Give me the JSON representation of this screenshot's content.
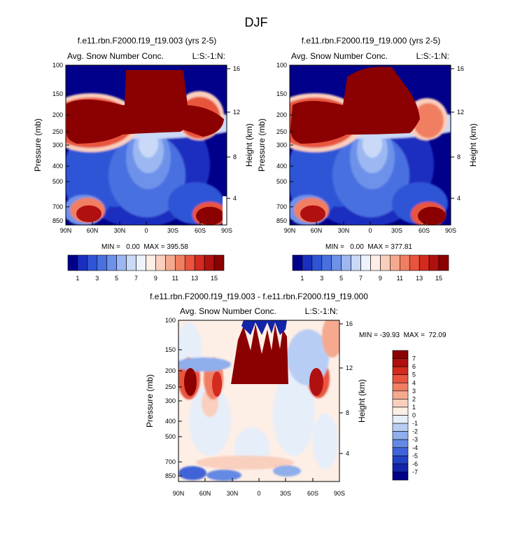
{
  "page_title": "DJF",
  "chart_data": [
    {
      "type": "heatmap",
      "title": "f.e11.rbn.F2000.f19_f19.003 (yrs 2-5)",
      "left_label": "Avg. Snow Number Conc.",
      "right_label": "L:S:-1:N:",
      "ylabel": "Pressure (mb)",
      "y2label": "Height (km)",
      "xticks": [
        "90N",
        "60N",
        "30N",
        "0",
        "30S",
        "60S",
        "90S"
      ],
      "yticks": [
        "100",
        "150",
        "200",
        "250",
        "300",
        "400",
        "500",
        "700",
        "850"
      ],
      "y2ticks": [
        "16",
        "12",
        "8",
        "4"
      ],
      "stats": "MIN =   0.00  MAX = 395.58",
      "colorbar_labels": [
        "1",
        "3",
        "5",
        "7",
        "9",
        "11",
        "13",
        "15"
      ],
      "colorbar_levels": 16,
      "colors": [
        "#00008b",
        "#1a2fc0",
        "#2f55d6",
        "#4a70e0",
        "#6e92ea",
        "#9cb7f2",
        "#cad9f7",
        "#eef2fa",
        "#fdeee6",
        "#f9cfbd",
        "#f5a98e",
        "#f07f62",
        "#e8543e",
        "#d42a1f",
        "#b11010",
        "#8b0000"
      ]
    },
    {
      "type": "heatmap",
      "title": "f.e11.rbn.F2000.f19_f19.000 (yrs 2-5)",
      "left_label": "Avg. Snow Number Conc.",
      "right_label": "L:S:-1:N:",
      "ylabel": "Pressure (mb)",
      "y2label": "Height (km)",
      "xticks": [
        "90N",
        "60N",
        "30N",
        "0",
        "30S",
        "60S",
        "90S"
      ],
      "yticks": [
        "100",
        "150",
        "200",
        "250",
        "300",
        "400",
        "500",
        "700",
        "850"
      ],
      "y2ticks": [
        "16",
        "12",
        "8",
        "4"
      ],
      "stats": "MIN =   0.00  MAX = 377.81",
      "colorbar_labels": [
        "1",
        "3",
        "5",
        "7",
        "9",
        "11",
        "13",
        "15"
      ],
      "colorbar_levels": 16,
      "colors": [
        "#00008b",
        "#1a2fc0",
        "#2f55d6",
        "#4a70e0",
        "#6e92ea",
        "#9cb7f2",
        "#cad9f7",
        "#eef2fa",
        "#fdeee6",
        "#f9cfbd",
        "#f5a98e",
        "#f07f62",
        "#e8543e",
        "#d42a1f",
        "#b11010",
        "#8b0000"
      ]
    },
    {
      "type": "heatmap",
      "title": "f.e11.rbn.F2000.f19_f19.003 - f.e11.rbn.F2000.f19_f19.000",
      "left_label": "Avg. Snow Number Conc.",
      "right_label": "L:S:-1:N:",
      "ylabel": "Pressure (mb)",
      "y2label": "Height (km)",
      "xticks": [
        "90N",
        "60N",
        "30N",
        "0",
        "30S",
        "60S",
        "90S"
      ],
      "yticks": [
        "100",
        "150",
        "200",
        "250",
        "300",
        "400",
        "500",
        "700",
        "850"
      ],
      "y2ticks": [
        "16",
        "12",
        "8",
        "4"
      ],
      "stats": "MIN = -39.93  MAX =  72.09",
      "colorbar_labels": [
        "7",
        "6",
        "5",
        "4",
        "3",
        "2",
        "1",
        "0",
        "-1",
        "-2",
        "-3",
        "-4",
        "-5",
        "-6",
        "-7"
      ],
      "colors": [
        "#8b0000",
        "#b11010",
        "#d42a1f",
        "#e8543e",
        "#f07f62",
        "#f5a98e",
        "#f9cfbd",
        "#fdeee6",
        "#e6eefa",
        "#b8cdf3",
        "#8eaeec",
        "#6389e4",
        "#3f63d8",
        "#2341c4",
        "#1224a8",
        "#00008b"
      ]
    }
  ]
}
